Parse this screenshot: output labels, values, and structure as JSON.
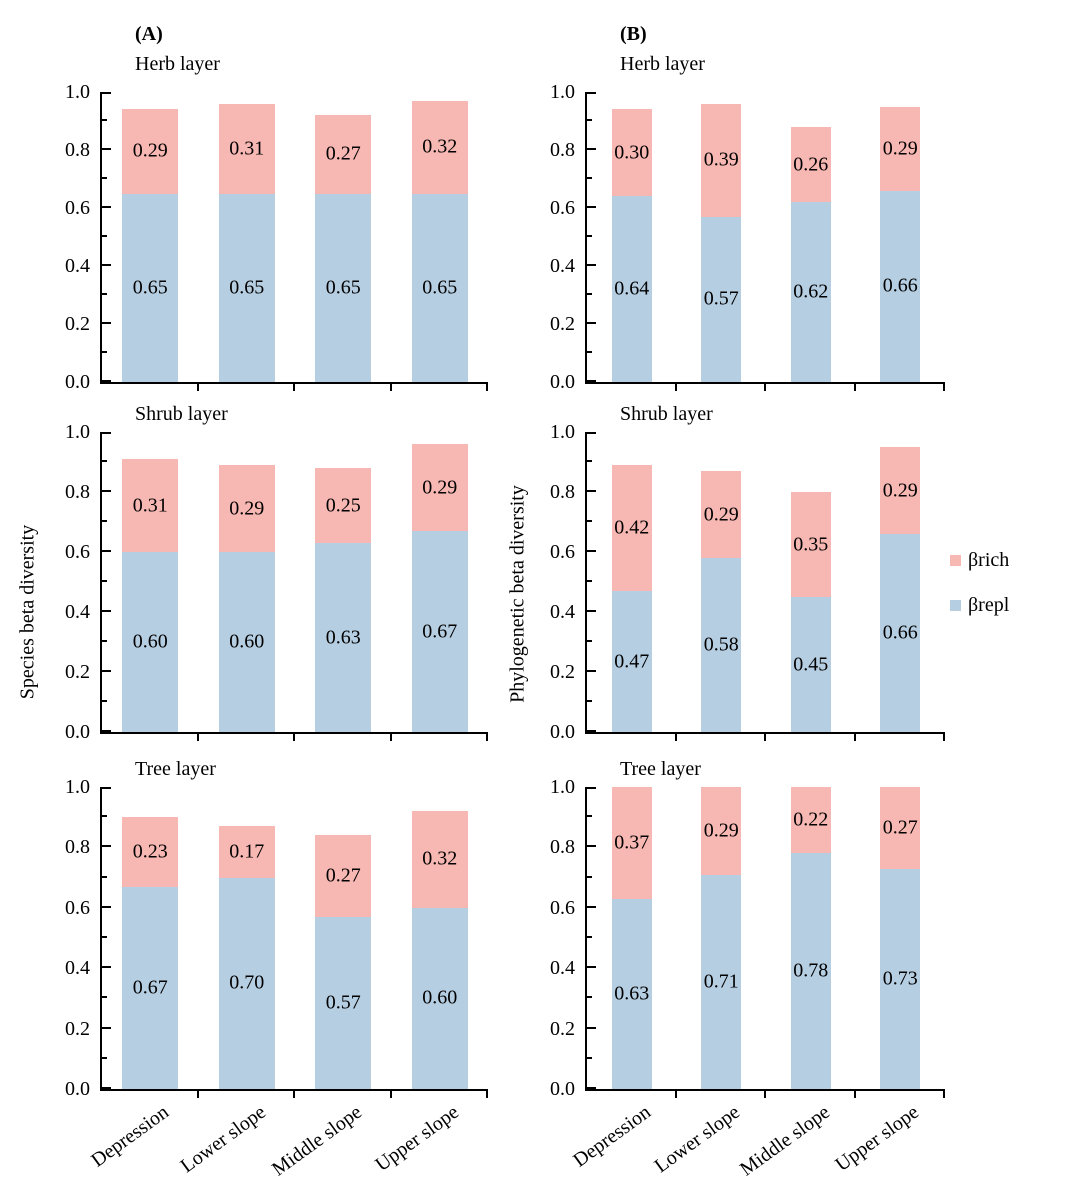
{
  "figure": {
    "ylabels": [
      "Species beta diversity",
      "Phylogenetic beta diversity"
    ],
    "legend": [
      {
        "label": "βrich",
        "color": "#f7b7b2"
      },
      {
        "label": "βrepl",
        "color": "#b6cee2"
      }
    ],
    "categories": [
      "Depression",
      "Lower slope",
      "Middle slope",
      "Upper slope"
    ],
    "ytick_labels": [
      "0.0",
      "0.2",
      "0.4",
      "0.6",
      "0.8",
      "1.0"
    ]
  },
  "chart_data": [
    {
      "type": "bar",
      "stacked": true,
      "panel_label": "(A)",
      "title": "Herb layer",
      "ylabel": "Species beta diversity",
      "ylim": [
        0,
        1.0
      ],
      "yticks": [
        0.0,
        0.2,
        0.4,
        0.6,
        0.8,
        1.0
      ],
      "grid": false,
      "categories": [
        "Depression",
        "Lower slope",
        "Middle slope",
        "Upper slope"
      ],
      "series": [
        {
          "name": "βrepl",
          "color": "#b6cee2",
          "values": [
            0.65,
            0.65,
            0.65,
            0.65
          ]
        },
        {
          "name": "βrich",
          "color": "#f7b7b2",
          "values": [
            0.29,
            0.31,
            0.27,
            0.32
          ]
        }
      ]
    },
    {
      "type": "bar",
      "stacked": true,
      "panel_label": "(B)",
      "title": "Herb layer",
      "ylabel": "Phylogenetic beta diversity",
      "ylim": [
        0,
        1.0
      ],
      "yticks": [
        0.0,
        0.2,
        0.4,
        0.6,
        0.8,
        1.0
      ],
      "grid": false,
      "categories": [
        "Depression",
        "Lower slope",
        "Middle slope",
        "Upper slope"
      ],
      "series": [
        {
          "name": "βrepl",
          "color": "#b6cee2",
          "values": [
            0.64,
            0.57,
            0.62,
            0.66
          ]
        },
        {
          "name": "βrich",
          "color": "#f7b7b2",
          "values": [
            0.3,
            0.39,
            0.26,
            0.29
          ]
        }
      ]
    },
    {
      "type": "bar",
      "stacked": true,
      "panel_label": null,
      "title": "Shrub layer",
      "ylabel": "Species beta diversity",
      "ylim": [
        0,
        1.0
      ],
      "yticks": [
        0.0,
        0.2,
        0.4,
        0.6,
        0.8,
        1.0
      ],
      "grid": false,
      "categories": [
        "Depression",
        "Lower slope",
        "Middle slope",
        "Upper slope"
      ],
      "series": [
        {
          "name": "βrepl",
          "color": "#b6cee2",
          "values": [
            0.6,
            0.6,
            0.63,
            0.67
          ]
        },
        {
          "name": "βrich",
          "color": "#f7b7b2",
          "values": [
            0.31,
            0.29,
            0.25,
            0.29
          ]
        }
      ]
    },
    {
      "type": "bar",
      "stacked": true,
      "panel_label": null,
      "title": "Shrub layer",
      "ylabel": "Phylogenetic beta diversity",
      "ylim": [
        0,
        1.0
      ],
      "yticks": [
        0.0,
        0.2,
        0.4,
        0.6,
        0.8,
        1.0
      ],
      "grid": false,
      "categories": [
        "Depression",
        "Lower slope",
        "Middle slope",
        "Upper slope"
      ],
      "series": [
        {
          "name": "βrepl",
          "color": "#b6cee2",
          "values": [
            0.47,
            0.58,
            0.45,
            0.66
          ]
        },
        {
          "name": "βrich",
          "color": "#f7b7b2",
          "values": [
            0.42,
            0.29,
            0.35,
            0.29
          ]
        }
      ]
    },
    {
      "type": "bar",
      "stacked": true,
      "panel_label": null,
      "title": "Tree layer",
      "ylabel": "Species beta diversity",
      "ylim": [
        0,
        1.0
      ],
      "yticks": [
        0.0,
        0.2,
        0.4,
        0.6,
        0.8,
        1.0
      ],
      "grid": false,
      "categories": [
        "Depression",
        "Lower slope",
        "Middle slope",
        "Upper slope"
      ],
      "series": [
        {
          "name": "βrepl",
          "color": "#b6cee2",
          "values": [
            0.67,
            0.7,
            0.57,
            0.6
          ]
        },
        {
          "name": "βrich",
          "color": "#f7b7b2",
          "values": [
            0.23,
            0.17,
            0.27,
            0.32
          ]
        }
      ]
    },
    {
      "type": "bar",
      "stacked": true,
      "panel_label": null,
      "title": "Tree layer",
      "ylabel": "Phylogenetic beta diversity",
      "ylim": [
        0,
        1.0
      ],
      "yticks": [
        0.0,
        0.2,
        0.4,
        0.6,
        0.8,
        1.0
      ],
      "grid": false,
      "categories": [
        "Depression",
        "Lower slope",
        "Middle slope",
        "Upper slope"
      ],
      "series": [
        {
          "name": "βrepl",
          "color": "#b6cee2",
          "values": [
            0.63,
            0.71,
            0.78,
            0.73
          ]
        },
        {
          "name": "βrich",
          "color": "#f7b7b2",
          "values": [
            0.37,
            0.29,
            0.22,
            0.27
          ]
        }
      ]
    }
  ]
}
